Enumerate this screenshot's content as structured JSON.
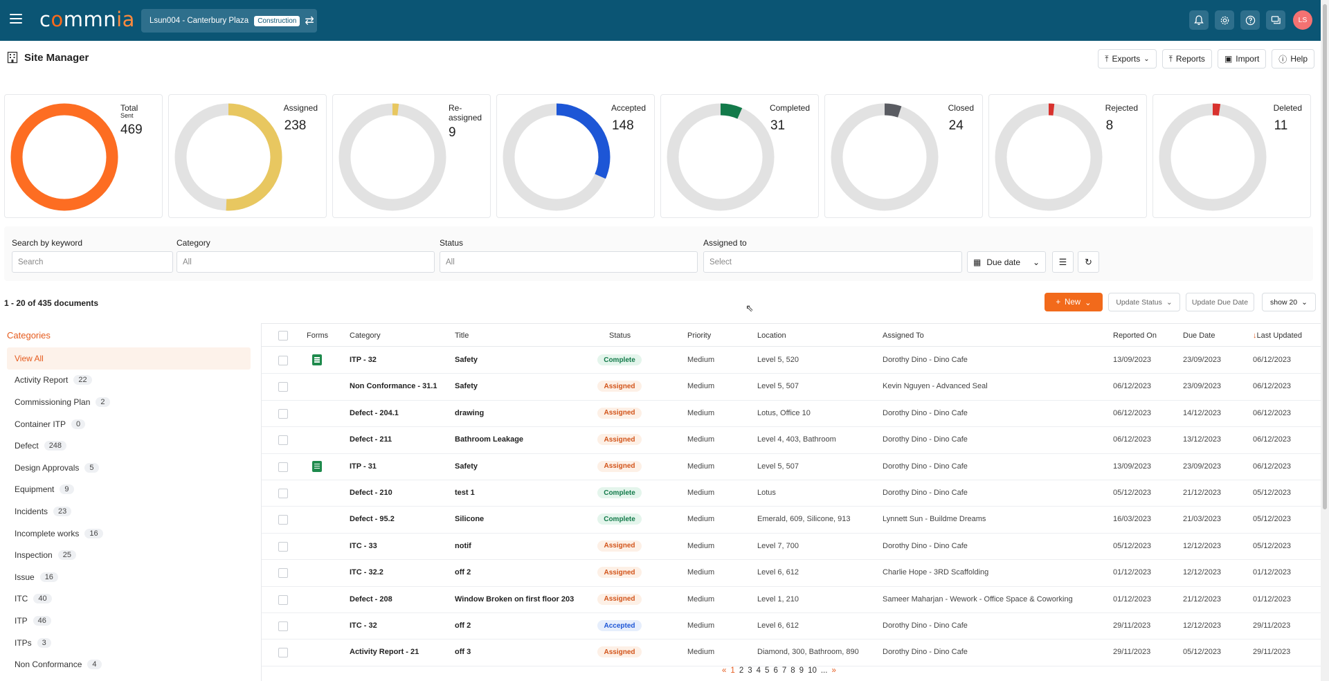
{
  "app": {
    "logo_text_pre": "c",
    "logo_text_o": "o",
    "logo_text_mid": "mmn",
    "logo_text_ia": "ia",
    "project_name": "Lsun004 - Canterbury Plaza",
    "project_badge": "Construction",
    "avatar_initials": "LS"
  },
  "header": {
    "title": "Site Manager",
    "exports_label": "Exports",
    "reports_label": "Reports",
    "import_label": "Import",
    "help_label": "Help"
  },
  "cards": [
    {
      "label": "Total",
      "sublabel": "Sent",
      "value": "469",
      "fraction": 1.0,
      "color": "#fd6d22"
    },
    {
      "label": "Assigned",
      "value": "238",
      "fraction": 0.507,
      "color": "#e8c760"
    },
    {
      "label": "Re-",
      "label2": "assigned",
      "value": "9",
      "fraction": 0.019,
      "color": "#e8c760"
    },
    {
      "label": "Accepted",
      "value": "148",
      "fraction": 0.316,
      "color": "#1d56d6"
    },
    {
      "label": "Completed",
      "value": "31",
      "fraction": 0.066,
      "color": "#137a4a"
    },
    {
      "label": "Closed",
      "value": "24",
      "fraction": 0.051,
      "color": "#5a5c62"
    },
    {
      "label": "Rejected",
      "value": "8",
      "fraction": 0.017,
      "color": "#d8322e"
    },
    {
      "label": "Deleted",
      "value": "11",
      "fraction": 0.023,
      "color": "#d8322e"
    }
  ],
  "filters": {
    "keyword_label": "Search by keyword",
    "keyword_placeholder": "Search",
    "category_label": "Category",
    "category_value": "All",
    "status_label": "Status",
    "status_value": "All",
    "assigned_label": "Assigned to",
    "assigned_placeholder": "Select",
    "due_label": "Due date"
  },
  "toolbar": {
    "doc_count": "1 - 20 of 435 documents",
    "new_label": "New",
    "update_status_label": "Update Status",
    "update_due_label": "Update Due Date",
    "show_label": "show 20"
  },
  "sidebar": {
    "title": "Categories",
    "items": [
      {
        "label": "View All",
        "count": ""
      },
      {
        "label": "Activity Report",
        "count": "22"
      },
      {
        "label": "Commissioning Plan",
        "count": "2"
      },
      {
        "label": "Container ITP",
        "count": "0"
      },
      {
        "label": "Defect",
        "count": "248"
      },
      {
        "label": "Design Approvals",
        "count": "5"
      },
      {
        "label": "Equipment",
        "count": "9"
      },
      {
        "label": "Incidents",
        "count": "23"
      },
      {
        "label": "Incomplete works",
        "count": "16"
      },
      {
        "label": "Inspection",
        "count": "25"
      },
      {
        "label": "Issue",
        "count": "16"
      },
      {
        "label": "ITC",
        "count": "40"
      },
      {
        "label": "ITP",
        "count": "46"
      },
      {
        "label": "ITPs",
        "count": "3"
      },
      {
        "label": "Non Conformance",
        "count": "4"
      }
    ]
  },
  "table": {
    "headers": {
      "forms": "Forms",
      "category": "Category",
      "title": "Title",
      "status": "Status",
      "priority": "Priority",
      "location": "Location",
      "assigned": "Assigned To",
      "reported": "Reported On",
      "due": "Due Date",
      "updated": "Last Updated",
      "sort_arrow": "↓"
    },
    "rows": [
      {
        "form": true,
        "category": "ITP - 32",
        "title": "Safety",
        "status": "Complete",
        "priority": "Medium",
        "location": "Level 5, 520",
        "assigned": "Dorothy Dino - Dino Cafe",
        "reported": "13/09/2023",
        "due": "23/09/2023",
        "updated": "06/12/2023"
      },
      {
        "form": false,
        "category": "Non Conformance - 31.1",
        "title": "Safety",
        "status": "Assigned",
        "priority": "Medium",
        "location": "Level 5, 507",
        "assigned": "Kevin Nguyen - Advanced Seal",
        "reported": "06/12/2023",
        "due": "23/09/2023",
        "updated": "06/12/2023"
      },
      {
        "form": false,
        "category": "Defect - 204.1",
        "title": "drawing",
        "status": "Assigned",
        "priority": "Medium",
        "location": "Lotus, Office 10",
        "assigned": "Dorothy Dino - Dino Cafe",
        "reported": "06/12/2023",
        "due": "14/12/2023",
        "updated": "06/12/2023"
      },
      {
        "form": false,
        "category": "Defect - 211",
        "title": "Bathroom Leakage",
        "status": "Assigned",
        "priority": "Medium",
        "location": "Level 4, 403, Bathroom",
        "assigned": "Dorothy Dino - Dino Cafe",
        "reported": "06/12/2023",
        "due": "13/12/2023",
        "updated": "06/12/2023"
      },
      {
        "form": true,
        "category": "ITP - 31",
        "title": "Safety",
        "status": "Assigned",
        "priority": "Medium",
        "location": "Level 5, 507",
        "assigned": "Dorothy Dino - Dino Cafe",
        "reported": "13/09/2023",
        "due": "23/09/2023",
        "updated": "06/12/2023"
      },
      {
        "form": false,
        "category": "Defect - 210",
        "title": "test 1",
        "status": "Complete",
        "priority": "Medium",
        "location": "Lotus",
        "assigned": "Dorothy Dino - Dino Cafe",
        "reported": "05/12/2023",
        "due": "21/12/2023",
        "updated": "05/12/2023"
      },
      {
        "form": false,
        "category": "Defect - 95.2",
        "title": "Silicone",
        "status": "Complete",
        "priority": "Medium",
        "location": "Emerald, 609, Silicone, 913",
        "assigned": "Lynnett Sun - Buildme Dreams",
        "reported": "16/03/2023",
        "due": "21/03/2023",
        "updated": "05/12/2023"
      },
      {
        "form": false,
        "category": "ITC - 33",
        "title": "notif",
        "status": "Assigned",
        "priority": "Medium",
        "location": "Level 7, 700",
        "assigned": "Dorothy Dino - Dino Cafe",
        "reported": "05/12/2023",
        "due": "12/12/2023",
        "updated": "05/12/2023"
      },
      {
        "form": false,
        "category": "ITC - 32.2",
        "title": "off 2",
        "status": "Assigned",
        "priority": "Medium",
        "location": "Level 6, 612",
        "assigned": "Charlie Hope - 3RD Scaffolding",
        "reported": "01/12/2023",
        "due": "12/12/2023",
        "updated": "01/12/2023"
      },
      {
        "form": false,
        "category": "Defect - 208",
        "title": "Window Broken on first floor 203",
        "status": "Assigned",
        "priority": "Medium",
        "location": "Level 1, 210",
        "assigned": "Sameer Maharjan - Wework - Office Space & Coworking",
        "reported": "01/12/2023",
        "due": "21/12/2023",
        "updated": "01/12/2023"
      },
      {
        "form": false,
        "category": "ITC - 32",
        "title": "off 2",
        "status": "Accepted",
        "priority": "Medium",
        "location": "Level 6, 612",
        "assigned": "Dorothy Dino - Dino Cafe",
        "reported": "29/11/2023",
        "due": "12/12/2023",
        "updated": "29/11/2023"
      },
      {
        "form": false,
        "category": "Activity Report - 21",
        "title": "off 3",
        "status": "Assigned",
        "priority": "Medium",
        "location": "Diamond, 300, Bathroom, 890",
        "assigned": "Dorothy Dino - Dino Cafe",
        "reported": "29/11/2023",
        "due": "05/12/2023",
        "updated": "29/11/2023"
      }
    ]
  },
  "pagination": {
    "prev": "«",
    "pages": [
      "1",
      "2",
      "3",
      "4",
      "5",
      "6",
      "7",
      "8",
      "9",
      "10"
    ],
    "ellipsis": "...",
    "next": "»",
    "current": "1"
  },
  "status_colors": {
    "Complete": {
      "bg": "#e4f5ec",
      "fg": "#137a4a"
    },
    "Assigned": {
      "bg": "#fdf0e6",
      "fg": "#d2541a"
    },
    "Accepted": {
      "bg": "#e6eefc",
      "fg": "#1d56d6"
    }
  }
}
